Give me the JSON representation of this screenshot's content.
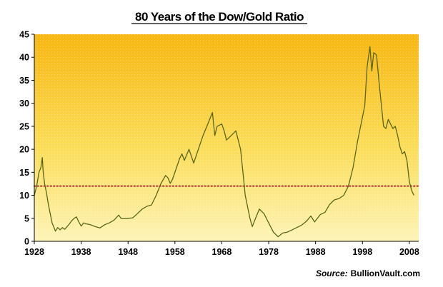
{
  "chart_data": {
    "type": "line",
    "title": "80 Years of the Dow/Gold Ratio",
    "xlabel": "",
    "ylabel": "",
    "source_prefix": "Source:",
    "source_name": "BullionVault.com",
    "xlim": [
      1928,
      2010
    ],
    "ylim": [
      0,
      45
    ],
    "xticks": [
      1928,
      1938,
      1948,
      1958,
      1968,
      1978,
      1988,
      1998,
      2008
    ],
    "yticks": [
      0,
      5,
      10,
      15,
      20,
      25,
      30,
      35,
      40,
      45
    ],
    "grid": false,
    "reference_line": {
      "y": 12,
      "color": "#b03030",
      "style": "dotted"
    },
    "series": [
      {
        "color": "#5a6618",
        "points": [
          [
            1928.0,
            10
          ],
          [
            1928.5,
            12
          ],
          [
            1929.0,
            15
          ],
          [
            1929.4,
            16
          ],
          [
            1929.7,
            18.2
          ],
          [
            1929.9,
            15
          ],
          [
            1930.2,
            12.5
          ],
          [
            1930.6,
            10.5
          ],
          [
            1931.0,
            8
          ],
          [
            1931.4,
            6
          ],
          [
            1931.8,
            4
          ],
          [
            1932.2,
            3
          ],
          [
            1932.5,
            2.2
          ],
          [
            1933.0,
            3
          ],
          [
            1933.5,
            2.5
          ],
          [
            1934.0,
            3
          ],
          [
            1934.5,
            2.6
          ],
          [
            1935.0,
            3.2
          ],
          [
            1935.5,
            3.8
          ],
          [
            1936.0,
            4.5
          ],
          [
            1936.5,
            5
          ],
          [
            1937.0,
            5.3
          ],
          [
            1937.5,
            4.2
          ],
          [
            1938.0,
            3.3
          ],
          [
            1938.5,
            4
          ],
          [
            1939.0,
            3.8
          ],
          [
            1940.0,
            3.6
          ],
          [
            1941.0,
            3.2
          ],
          [
            1942.0,
            2.9
          ],
          [
            1943.0,
            3.6
          ],
          [
            1944.0,
            4
          ],
          [
            1945.0,
            4.6
          ],
          [
            1946.0,
            5.7
          ],
          [
            1946.5,
            5
          ],
          [
            1947.0,
            4.9
          ],
          [
            1948.0,
            5
          ],
          [
            1949.0,
            5.1
          ],
          [
            1950.0,
            6
          ],
          [
            1951.0,
            7
          ],
          [
            1952.0,
            7.6
          ],
          [
            1953.0,
            7.9
          ],
          [
            1954.0,
            10
          ],
          [
            1955.0,
            12.5
          ],
          [
            1956.0,
            14.3
          ],
          [
            1956.5,
            13.8
          ],
          [
            1957.0,
            12.6
          ],
          [
            1957.5,
            13.5
          ],
          [
            1958.0,
            15
          ],
          [
            1959.0,
            18
          ],
          [
            1959.5,
            19
          ],
          [
            1960.0,
            17.6
          ],
          [
            1961.0,
            20
          ],
          [
            1962.0,
            17
          ],
          [
            1963.0,
            20
          ],
          [
            1964.0,
            23
          ],
          [
            1965.0,
            25.5
          ],
          [
            1966.0,
            28
          ],
          [
            1966.5,
            23
          ],
          [
            1967.0,
            25
          ],
          [
            1968.0,
            25.5
          ],
          [
            1968.5,
            24
          ],
          [
            1969.0,
            22
          ],
          [
            1970.0,
            23
          ],
          [
            1971.0,
            24
          ],
          [
            1971.5,
            22
          ],
          [
            1972.0,
            20
          ],
          [
            1972.5,
            15
          ],
          [
            1973.0,
            10
          ],
          [
            1974.0,
            5
          ],
          [
            1974.5,
            3.2
          ],
          [
            1975.0,
            4.5
          ],
          [
            1976.0,
            7
          ],
          [
            1977.0,
            6
          ],
          [
            1978.0,
            4
          ],
          [
            1979.0,
            2
          ],
          [
            1980.0,
            1
          ],
          [
            1981.0,
            1.8
          ],
          [
            1982.0,
            2
          ],
          [
            1983.0,
            2.5
          ],
          [
            1984.0,
            3
          ],
          [
            1985.0,
            3.5
          ],
          [
            1986.0,
            4.3
          ],
          [
            1987.0,
            5.5
          ],
          [
            1987.8,
            4.2
          ],
          [
            1988.0,
            4.5
          ],
          [
            1989.0,
            5.8
          ],
          [
            1990.0,
            6.3
          ],
          [
            1991.0,
            8
          ],
          [
            1992.0,
            9
          ],
          [
            1993.0,
            9.3
          ],
          [
            1994.0,
            10
          ],
          [
            1995.0,
            12
          ],
          [
            1996.0,
            16
          ],
          [
            1997.0,
            22
          ],
          [
            1998.0,
            27
          ],
          [
            1998.5,
            29.5
          ],
          [
            1999.0,
            38
          ],
          [
            1999.6,
            42.3
          ],
          [
            2000.0,
            37
          ],
          [
            2000.4,
            41
          ],
          [
            2001.0,
            40.5
          ],
          [
            2001.5,
            35
          ],
          [
            2002.0,
            30
          ],
          [
            2002.5,
            25
          ],
          [
            2003.0,
            24.5
          ],
          [
            2003.5,
            26.5
          ],
          [
            2004.0,
            25.5
          ],
          [
            2004.5,
            24.5
          ],
          [
            2005.0,
            25
          ],
          [
            2005.5,
            23
          ],
          [
            2006.0,
            20.5
          ],
          [
            2006.5,
            19
          ],
          [
            2007.0,
            19.5
          ],
          [
            2007.5,
            17.5
          ],
          [
            2008.0,
            13
          ],
          [
            2008.5,
            11
          ],
          [
            2009.0,
            10
          ]
        ]
      }
    ]
  }
}
